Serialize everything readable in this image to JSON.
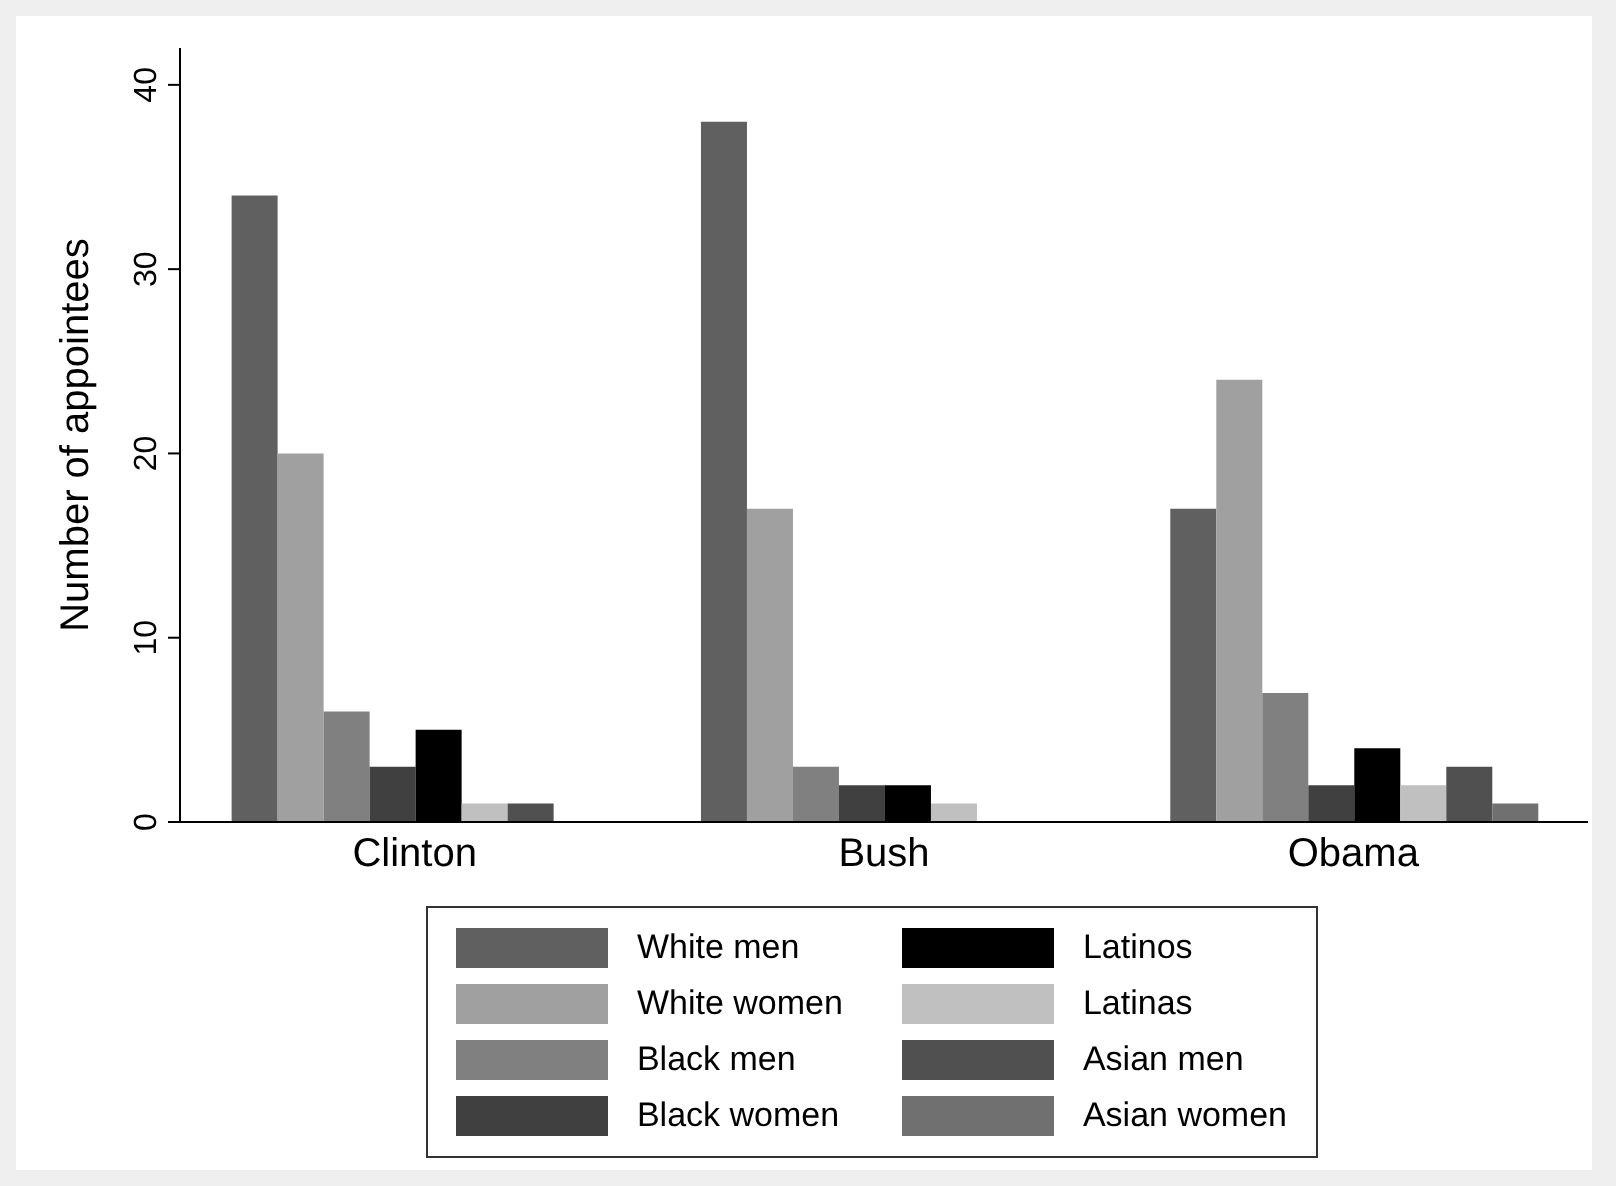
{
  "chart_data": {
    "type": "bar",
    "ylabel": "Number of appointees",
    "categories": [
      "Clinton",
      "Bush",
      "Obama"
    ],
    "series": [
      {
        "name": "White men",
        "color": "#606060",
        "values": [
          34,
          38,
          17
        ]
      },
      {
        "name": "White women",
        "color": "#a0a0a0",
        "values": [
          20,
          17,
          24
        ]
      },
      {
        "name": "Black men",
        "color": "#808080",
        "values": [
          6,
          3,
          7
        ]
      },
      {
        "name": "Black women",
        "color": "#404040",
        "values": [
          3,
          2,
          2
        ]
      },
      {
        "name": "Latinos",
        "color": "#000000",
        "values": [
          5,
          2,
          4
        ]
      },
      {
        "name": "Latinas",
        "color": "#c0c0c0",
        "values": [
          1,
          1,
          2
        ]
      },
      {
        "name": "Asian men",
        "color": "#505050",
        "values": [
          1,
          0,
          3
        ]
      },
      {
        "name": "Asian women",
        "color": "#707070",
        "values": [
          0,
          0,
          1
        ]
      }
    ],
    "ylim": [
      0,
      42
    ],
    "yticks": [
      0,
      10,
      20,
      30,
      40
    ],
    "legend": "bottom"
  }
}
